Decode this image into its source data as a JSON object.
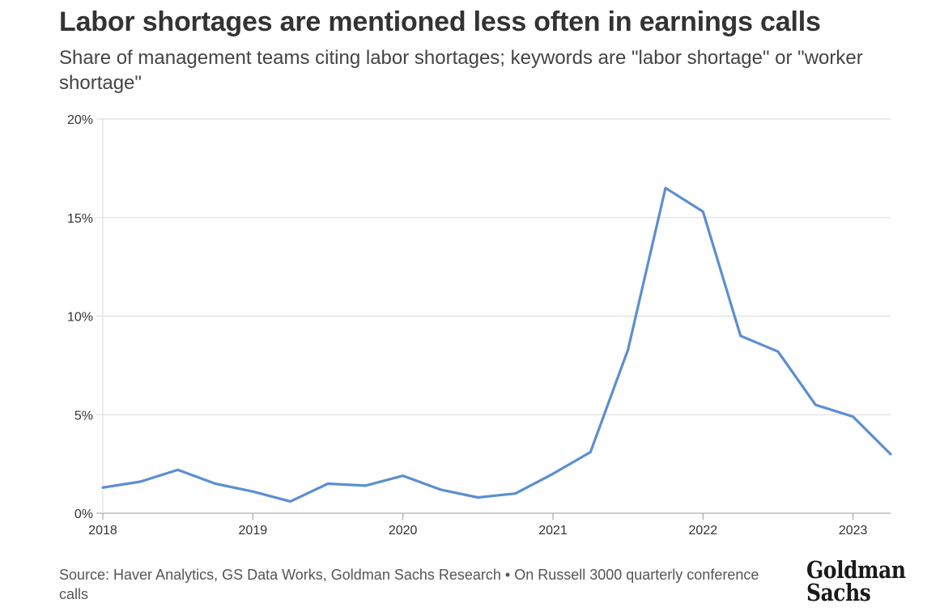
{
  "title": "Labor shortages are mentioned less often in earnings calls",
  "subtitle": "Share of management teams citing labor shortages; keywords are \"labor shortage\" or \"worker shortage\"",
  "source": "Source: Haver Analytics, GS Data Works, Goldman Sachs Research • On Russell 3000 quarterly conference calls",
  "logo": {
    "line1": "Goldman",
    "line2": "Sachs"
  },
  "colors": {
    "line": "#5b8fd0",
    "grid": "#d9d9d9",
    "axis": "#999999"
  },
  "chart_data": {
    "type": "line",
    "title": "Labor shortages are mentioned less often in earnings calls",
    "xlabel": "",
    "ylabel": "",
    "xlim": [
      2018.0,
      2023.25
    ],
    "ylim": [
      0,
      20
    ],
    "x_ticks": [
      2018,
      2019,
      2020,
      2021,
      2022,
      2023
    ],
    "y_ticks": [
      0,
      5,
      10,
      15,
      20
    ],
    "y_tick_labels": [
      "0%",
      "5%",
      "10%",
      "15%",
      "20%"
    ],
    "grid": true,
    "legend": "none",
    "series": [
      {
        "x": [
          2018.0,
          2018.25,
          2018.5,
          2018.75,
          2019.0,
          2019.25,
          2019.5,
          2019.75,
          2020.0,
          2020.25,
          2020.5,
          2020.75,
          2021.0,
          2021.25,
          2021.5,
          2021.75,
          2022.0,
          2022.25,
          2022.5,
          2022.75,
          2023.0,
          2023.25
        ],
        "values": [
          1.3,
          1.6,
          2.2,
          1.5,
          1.1,
          0.6,
          1.5,
          1.4,
          1.9,
          1.2,
          0.8,
          1.0,
          2.0,
          3.1,
          8.3,
          16.5,
          15.3,
          9.0,
          8.2,
          5.5,
          4.9,
          3.0
        ]
      }
    ]
  }
}
